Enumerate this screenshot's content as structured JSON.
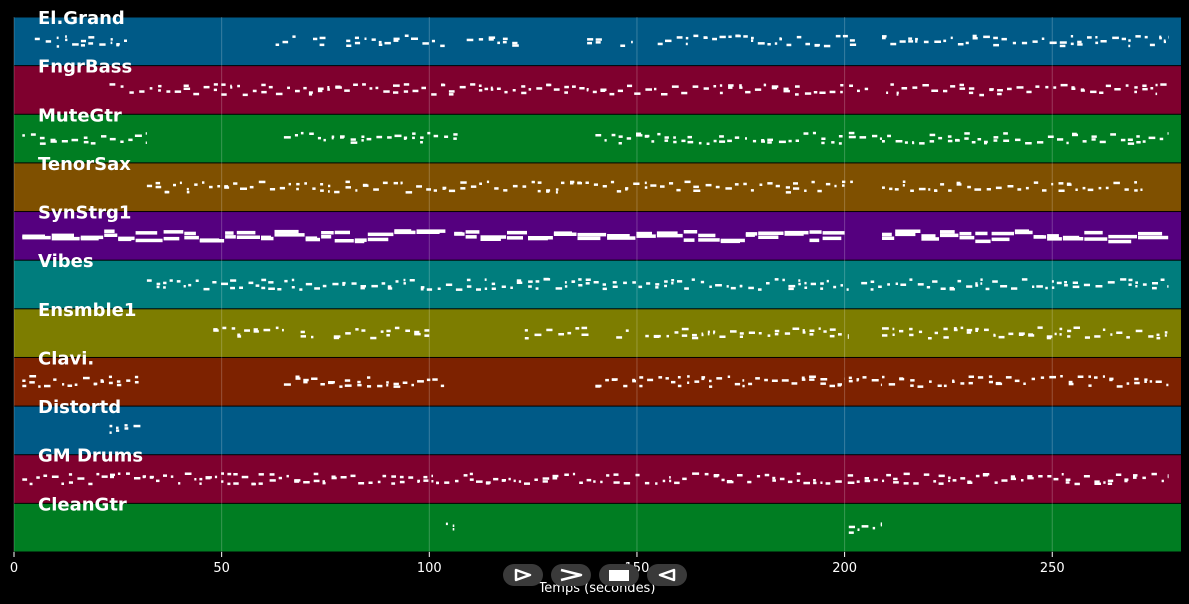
{
  "chart_data": {
    "type": "piano-roll",
    "xlabel": "Temps (secondes)",
    "xlim": [
      0,
      281
    ],
    "xticks": [
      0,
      50,
      100,
      150,
      200,
      250
    ],
    "grid": true,
    "tracks": [
      {
        "name": "El.Grand",
        "color": "#005a87",
        "sections": [
          [
            5,
            28
          ],
          [
            63,
            68
          ],
          [
            72,
            75
          ],
          [
            80,
            104
          ],
          [
            109,
            122
          ],
          [
            138,
            142
          ],
          [
            146,
            149
          ],
          [
            155,
            203
          ],
          [
            209,
            278
          ]
        ]
      },
      {
        "name": "FngrBass",
        "color": "#7f002e",
        "sections": [
          [
            23,
            206
          ],
          [
            210,
            278
          ]
        ]
      },
      {
        "name": "MuteGtr",
        "color": "#007d22",
        "sections": [
          [
            2,
            32
          ],
          [
            65,
            107
          ],
          [
            140,
            200
          ],
          [
            201,
            209
          ],
          [
            209,
            278
          ]
        ]
      },
      {
        "name": "TenorSax",
        "color": "#7f5000",
        "sections": [
          [
            32,
            202
          ],
          [
            209,
            272
          ]
        ]
      },
      {
        "name": "SynStrg1",
        "color": "#55007f",
        "sections": [
          [
            2,
            104
          ],
          [
            106,
            200
          ],
          [
            209,
            278
          ]
        ]
      },
      {
        "name": "Vibes",
        "color": "#007d7d",
        "sections": [
          [
            32,
            201
          ],
          [
            204,
            278
          ]
        ]
      },
      {
        "name": "Ensmble1",
        "color": "#7d7d00",
        "sections": [
          [
            48,
            65
          ],
          [
            69,
            73
          ],
          [
            77,
            100
          ],
          [
            123,
            139
          ],
          [
            145,
            148
          ],
          [
            152,
            201
          ],
          [
            209,
            278
          ]
        ]
      },
      {
        "name": "Clavi.",
        "color": "#7d2200",
        "sections": [
          [
            2,
            30
          ],
          [
            65,
            104
          ],
          [
            140,
            200
          ],
          [
            201,
            209
          ],
          [
            209,
            278
          ]
        ]
      },
      {
        "name": "Distortd",
        "color": "#005a87",
        "sections": [
          [
            23,
            31
          ]
        ]
      },
      {
        "name": "GM Drums",
        "color": "#7f002e",
        "sections": [
          [
            2,
            208
          ],
          [
            209,
            278
          ]
        ]
      },
      {
        "name": "CleanGtr",
        "color": "#007d22",
        "sections": [
          [
            104,
            106
          ],
          [
            201,
            209
          ]
        ]
      }
    ]
  },
  "transport": {
    "buttons": [
      {
        "name": "play-icon"
      },
      {
        "name": "forward-icon"
      },
      {
        "name": "stop-icon"
      },
      {
        "name": "rewind-icon"
      }
    ]
  }
}
